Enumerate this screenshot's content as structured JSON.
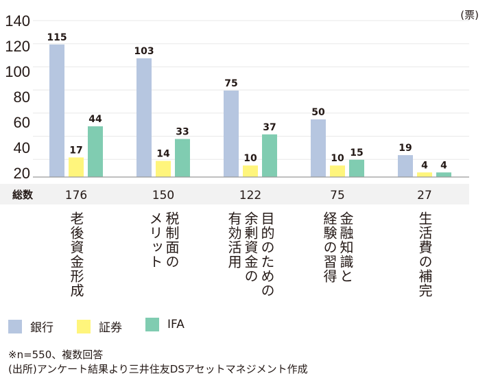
{
  "chart_data": {
    "type": "bar",
    "unit": "(票)",
    "yticks": [
      140,
      120,
      100,
      80,
      60,
      40,
      20
    ],
    "ylim": [
      0,
      140
    ],
    "categories": [
      "老後資金形成",
      "税制面の\nメリット",
      "目的のための\n余剰資金の\n有効活用",
      "金融知識と\n経験の習得",
      "生活費の補完"
    ],
    "series": [
      {
        "name": "銀行",
        "color": "#b6c6e0",
        "values": [
          115,
          103,
          75,
          50,
          19
        ]
      },
      {
        "name": "証券",
        "color": "#fff57c",
        "values": [
          17,
          14,
          10,
          10,
          4
        ]
      },
      {
        "name": "IFA",
        "color": "#80ccb1",
        "values": [
          44,
          33,
          37,
          15,
          4
        ]
      }
    ],
    "totals_label": "総数",
    "totals": [
      176,
      150,
      122,
      75,
      27
    ]
  },
  "notes": [
    "※n=550、複数回答",
    "(出所)アンケート結果より三井住友DSアセットマネジメント作成"
  ]
}
